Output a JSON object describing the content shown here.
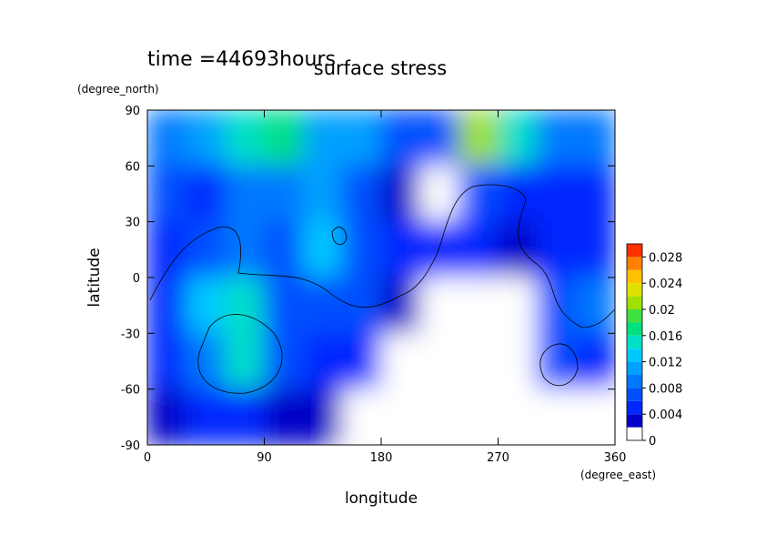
{
  "chart_data": {
    "type": "heatmap",
    "title": "surface stress",
    "subtitle": "time =44693hours",
    "x_label": "longitude",
    "y_label": "latitude",
    "x_units": "(degree_east)",
    "y_units": "(degree_north)",
    "x": [
      15,
      45,
      75,
      105,
      135,
      165,
      195,
      225,
      255,
      285,
      315,
      345
    ],
    "y": [
      75,
      45,
      15,
      -15,
      -45,
      -75
    ],
    "z": [
      [
        0.008,
        0.01,
        0.014,
        0.016,
        0.01,
        0.01,
        0.006,
        0.006,
        0.02,
        0.014,
        0.008,
        0.008
      ],
      [
        0.006,
        0.004,
        0.008,
        0.008,
        0.01,
        0.006,
        0.002,
        0.001,
        0.006,
        0.004,
        0.004,
        0.004
      ],
      [
        0.004,
        0.006,
        0.008,
        0.006,
        0.012,
        0.006,
        0.004,
        0.004,
        0.004,
        0.002,
        0.004,
        0.004
      ],
      [
        0.004,
        0.012,
        0.014,
        0.006,
        0.006,
        0.006,
        0.002,
        0.001,
        0.001,
        0.001,
        0.006,
        0.008
      ],
      [
        0.004,
        0.008,
        0.014,
        0.006,
        0.004,
        0.004,
        0.001,
        0.001,
        0.001,
        0.001,
        0.006,
        0.004
      ],
      [
        0.002,
        0.004,
        0.004,
        0.002,
        0.002,
        0.001,
        0.001,
        0.001,
        0.001,
        0.001,
        0.001,
        0.001
      ]
    ],
    "xlim": [
      0,
      360
    ],
    "ylim": [
      -90,
      90
    ],
    "xticks": [
      0,
      90,
      180,
      270,
      360
    ],
    "yticks": [
      -90,
      -60,
      -30,
      0,
      30,
      60,
      90
    ],
    "colorbar": {
      "zlim": [
        0,
        0.03
      ],
      "levels": [
        0,
        0.002,
        0.004,
        0.006,
        0.008,
        0.01,
        0.012,
        0.014,
        0.016,
        0.018,
        0.02,
        0.022,
        0.024,
        0.026,
        0.028
      ],
      "colors": [
        "#ffffff",
        "#0000c8",
        "#0028ff",
        "#0050ff",
        "#0078ff",
        "#00a0ff",
        "#00c8ff",
        "#00e0c8",
        "#00e080",
        "#40e040",
        "#a0e000",
        "#e0e000",
        "#ffc000",
        "#ff8000",
        "#ff3000"
      ],
      "ticks": [
        0,
        0.004,
        0.008,
        0.012,
        0.016,
        0.02,
        0.024,
        0.028
      ]
    }
  }
}
